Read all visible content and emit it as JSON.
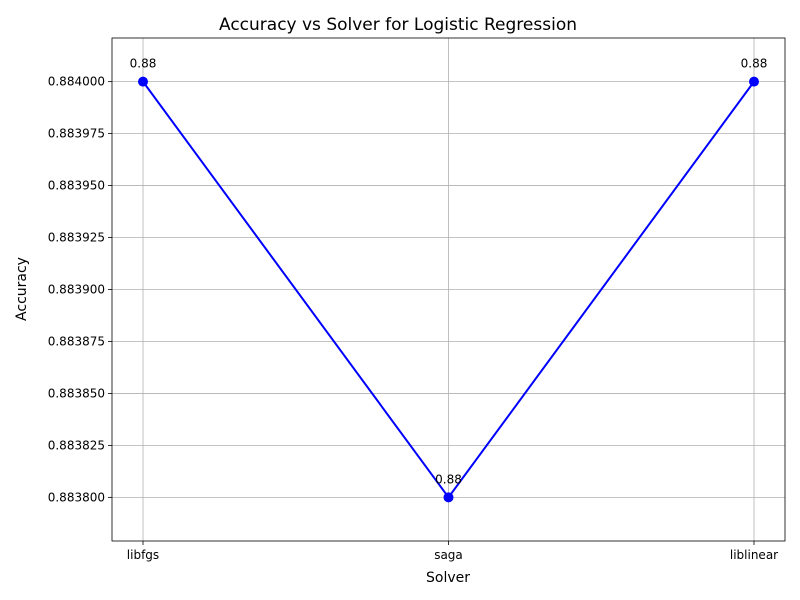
{
  "chart_data": {
    "type": "line",
    "title": "Accuracy vs Solver for Logistic Regression",
    "xlabel": "Solver",
    "ylabel": "Accuracy",
    "categories": [
      "libfgs",
      "saga",
      "liblinear"
    ],
    "series": [
      {
        "values": [
          0.884,
          0.8838,
          0.884
        ],
        "color": "#0000ff"
      }
    ],
    "data_labels": [
      "0.88",
      "0.88",
      "0.88"
    ],
    "ylim": [
      0.883779,
      0.884021
    ],
    "yticks": [
      0.8838,
      0.883825,
      0.88385,
      0.883875,
      0.8839,
      0.883925,
      0.88395,
      0.883975,
      0.884
    ],
    "ytick_labels": [
      "0.883800",
      "0.883825",
      "0.883850",
      "0.883875",
      "0.883900",
      "0.883925",
      "0.883950",
      "0.883975",
      "0.884000"
    ],
    "grid": true,
    "markers": "circle"
  }
}
